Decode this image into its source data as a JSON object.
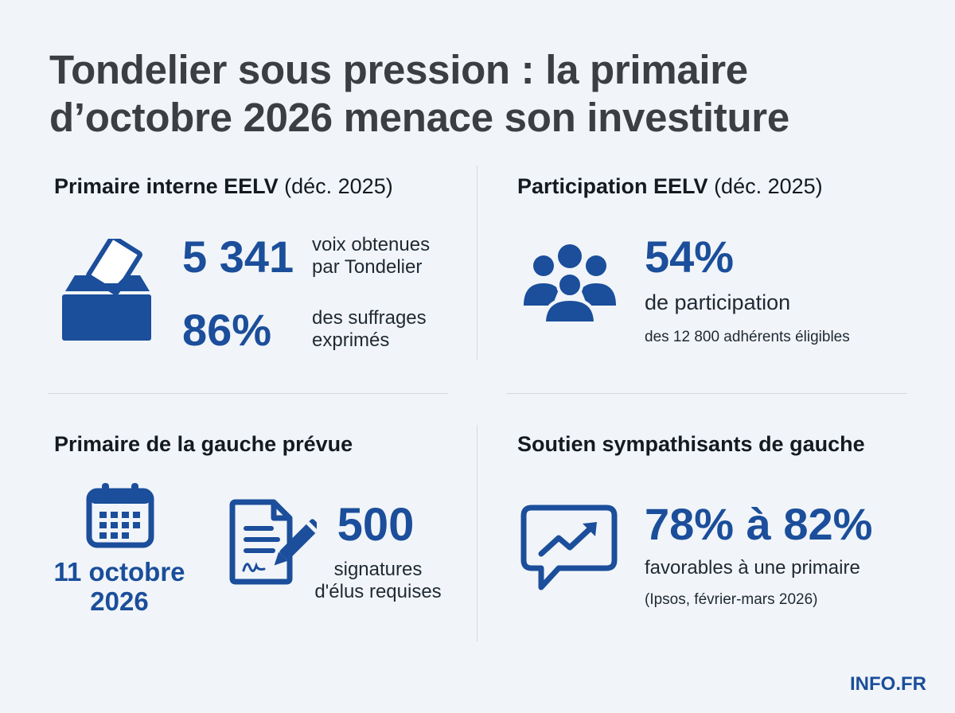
{
  "title": {
    "line1": "Tondelier sous pression : la primaire",
    "line2": "d’octobre 2026 menace son investiture"
  },
  "panels": {
    "primaire_interne": {
      "heading": "Primaire interne EELV",
      "heading_suffix": "(déc. 2025)",
      "icon": "ballot-box-icon",
      "stat1_value": "5 341",
      "stat1_desc_line1": "voix obtenues",
      "stat1_desc_line2": "par Tondelier",
      "stat2_value": "86%",
      "stat2_desc_line1": "des suffrages",
      "stat2_desc_line2": "exprimés"
    },
    "participation": {
      "heading": "Participation EELV",
      "heading_suffix": "(déc. 2025)",
      "icon": "group-people-icon",
      "value": "54%",
      "desc": "de participation",
      "note": "des 12 800 adhérents éligibles"
    },
    "primaire_gauche": {
      "heading": "Primaire de la gauche prévue",
      "icon_calendar": "calendar-icon",
      "date_line1": "11 octobre",
      "date_line2": "2026",
      "icon_document": "signed-document-icon",
      "value": "500",
      "desc_line1": "signatures",
      "desc_line2": "d'élus requises"
    },
    "soutien": {
      "heading": "Soutien sympathisants de gauche",
      "icon": "trend-chat-icon",
      "value": "78% à 82%",
      "desc": "favorables à une primaire",
      "note": "(Ipsos, février-mars 2026)"
    }
  },
  "brand": "INFO.FR",
  "colors": {
    "accent": "#1b4e9b",
    "background": "#f1f5f9",
    "title": "#3b3f43",
    "divider": "#d4d9df"
  }
}
